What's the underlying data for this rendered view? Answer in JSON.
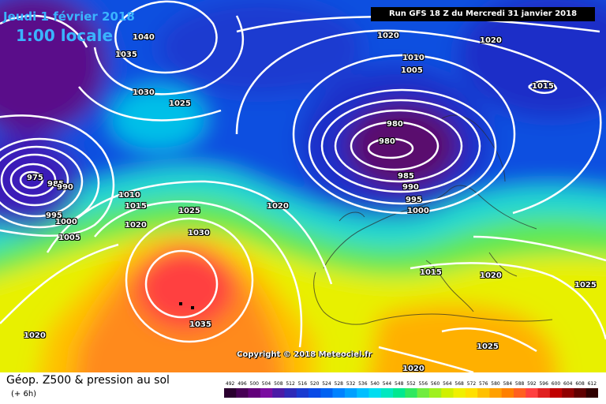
{
  "header": {
    "date": "Jeudi 1 février 2018",
    "time": "1:00 locale",
    "run": "Run GFS 18 Z du Mercredi 31 janvier 2018"
  },
  "copyright": "Copyright © 2018 Meteociel.fr",
  "footer": {
    "title": "Géop. Z500 & pression au sol",
    "subtitle": "(+ 6h)"
  },
  "legend": {
    "values": [
      "492",
      "496",
      "500",
      "504",
      "508",
      "512",
      "516",
      "520",
      "524",
      "528",
      "532",
      "536",
      "540",
      "544",
      "548",
      "552",
      "556",
      "560",
      "564",
      "568",
      "572",
      "576",
      "580",
      "584",
      "588",
      "592",
      "596",
      "600",
      "604",
      "608",
      "612"
    ],
    "colors": [
      "#2a002f",
      "#470055",
      "#62007a",
      "#7a0da0",
      "#4b1aa6",
      "#2e2ab8",
      "#1a3bd0",
      "#0a4ae6",
      "#0062f2",
      "#0082ff",
      "#00a0ff",
      "#00bfff",
      "#00ddf0",
      "#00e8c0",
      "#00e890",
      "#30e860",
      "#70ec40",
      "#a0f020",
      "#d0f000",
      "#f0f000",
      "#ffe000",
      "#ffc000",
      "#ffa000",
      "#ff8000",
      "#ff6020",
      "#ff4040",
      "#e02020",
      "#c00000",
      "#900000",
      "#600000",
      "#300000"
    ]
  },
  "isobar_labels": [
    "1040",
    "1035",
    "1030",
    "1025",
    "975",
    "985",
    "990",
    "995",
    "1000",
    "1005",
    "1010",
    "1015",
    "1020",
    "1025",
    "1030",
    "1035",
    "1020",
    "1020",
    "1020",
    "1010",
    "1005",
    "1015",
    "980",
    "980",
    "985",
    "990",
    "995",
    "1000",
    "1020",
    "1015",
    "1020",
    "1025",
    "1025",
    "1020",
    "1020"
  ],
  "colors": {
    "text_blue": "#3ab4ff",
    "isobar": "#ffffff"
  }
}
